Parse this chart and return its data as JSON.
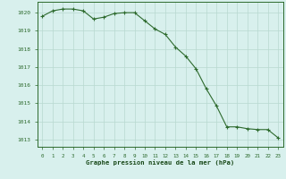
{
  "hours": [
    0,
    1,
    2,
    3,
    4,
    5,
    6,
    7,
    8,
    9,
    10,
    11,
    12,
    13,
    14,
    15,
    16,
    17,
    18,
    19,
    20,
    21,
    22,
    23
  ],
  "pressure": [
    1019.8,
    1020.1,
    1020.2,
    1020.2,
    1020.1,
    1019.65,
    1019.75,
    1019.95,
    1020.0,
    1020.0,
    1019.55,
    1019.1,
    1018.8,
    1018.1,
    1017.6,
    1016.9,
    1015.8,
    1014.85,
    1013.7,
    1013.7,
    1013.6,
    1013.55,
    1013.55,
    1013.1
  ],
  "line_color": "#2d6a2d",
  "marker_color": "#2d6a2d",
  "bg_color": "#d8f0ed",
  "grid_color": "#b8d8d0",
  "title": "Graphe pression niveau de la mer (hPa)",
  "title_color": "#1a4a1a",
  "ylabel_values": [
    1013,
    1014,
    1015,
    1016,
    1017,
    1018,
    1019,
    1020
  ],
  "ylim": [
    1012.6,
    1020.6
  ],
  "xlim": [
    -0.5,
    23.5
  ],
  "tick_color": "#2d6a2d",
  "spine_color": "#2d6a2d"
}
